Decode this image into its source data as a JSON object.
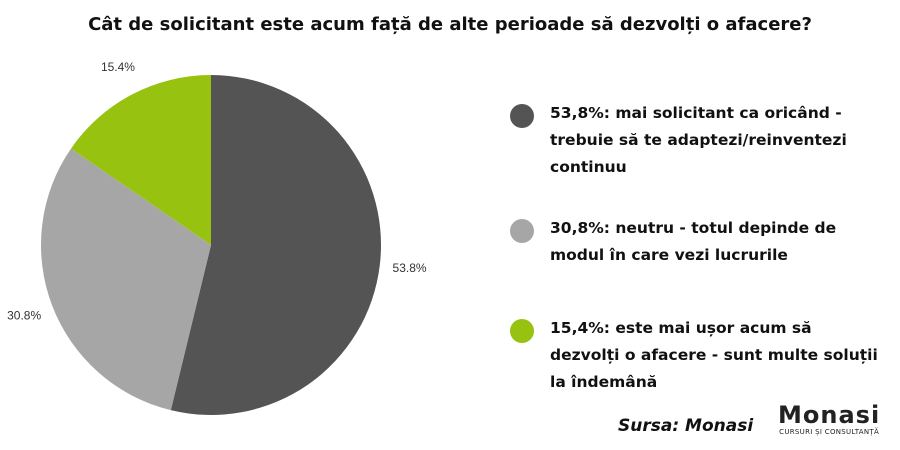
{
  "chart_data": {
    "type": "pie",
    "title": "Cât de solicitant este acum față de alte perioade să dezvolți o afacere?",
    "categories": [
      "53,8%: mai solicitant ca oricând - trebuie să te adaptezi/reinventezi continuu",
      "30,8%: neutru - totul depinde de modul în care vezi lucrurile",
      "15,4%: este mai ușor acum să dezvolți o afacere - sunt multe soluții la îndemână"
    ],
    "values": [
      53.8,
      30.8,
      15.4
    ],
    "value_labels": [
      "53.8%",
      "30.8%",
      "15.4%"
    ],
    "colors": [
      "#545454",
      "#a6a6a6",
      "#97c20f"
    ],
    "source": "Sursa: Monasi",
    "logo": {
      "name": "Monasi",
      "tagline": "CURSURI ȘI CONSULTANȚĂ"
    }
  }
}
